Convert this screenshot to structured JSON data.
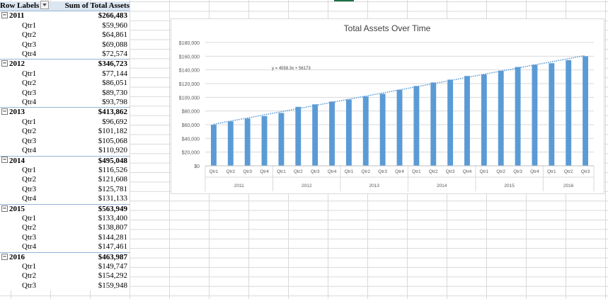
{
  "pivot": {
    "header_labels": "Row Labels",
    "header_sum": "Sum of Total Assets",
    "rows": [
      {
        "kind": "year",
        "label": "2011",
        "value": "$266,483"
      },
      {
        "kind": "q",
        "label": "Qtr1",
        "value": "$59,960"
      },
      {
        "kind": "q",
        "label": "Qtr2",
        "value": "$64,861"
      },
      {
        "kind": "q",
        "label": "Qtr3",
        "value": "$69,088"
      },
      {
        "kind": "q",
        "label": "Qtr4",
        "value": "$72,574"
      },
      {
        "kind": "year",
        "label": "2012",
        "value": "$346,723"
      },
      {
        "kind": "q",
        "label": "Qtr1",
        "value": "$77,144"
      },
      {
        "kind": "q",
        "label": "Qtr2",
        "value": "$86,051"
      },
      {
        "kind": "q",
        "label": "Qtr3",
        "value": "$89,730"
      },
      {
        "kind": "q",
        "label": "Qtr4",
        "value": "$93,798"
      },
      {
        "kind": "year",
        "label": "2013",
        "value": "$413,862"
      },
      {
        "kind": "q",
        "label": "Qtr1",
        "value": "$96,692"
      },
      {
        "kind": "q",
        "label": "Qtr2",
        "value": "$101,182"
      },
      {
        "kind": "q",
        "label": "Qtr3",
        "value": "$105,068"
      },
      {
        "kind": "q",
        "label": "Qtr4",
        "value": "$110,920"
      },
      {
        "kind": "year",
        "label": "2014",
        "value": "$495,048"
      },
      {
        "kind": "q",
        "label": "Qtr1",
        "value": "$116,526"
      },
      {
        "kind": "q",
        "label": "Qtr2",
        "value": "$121,608"
      },
      {
        "kind": "q",
        "label": "Qtr3",
        "value": "$125,781"
      },
      {
        "kind": "q",
        "label": "Qtr4",
        "value": "$131,133"
      },
      {
        "kind": "year",
        "label": "2015",
        "value": "$563,949"
      },
      {
        "kind": "q",
        "label": "Qtr1",
        "value": "$133,400"
      },
      {
        "kind": "q",
        "label": "Qtr2",
        "value": "$138,807"
      },
      {
        "kind": "q",
        "label": "Qtr3",
        "value": "$144,281"
      },
      {
        "kind": "q",
        "label": "Qtr4",
        "value": "$147,461"
      },
      {
        "kind": "year",
        "label": "2016",
        "value": "$463,987"
      },
      {
        "kind": "q",
        "label": "Qtr1",
        "value": "$149,747"
      },
      {
        "kind": "q",
        "label": "Qtr2",
        "value": "$154,292"
      },
      {
        "kind": "q",
        "label": "Qtr3",
        "value": "$159,948"
      }
    ]
  },
  "chart_data": {
    "type": "bar",
    "title": "Total Assets Over Time",
    "xlabel": "",
    "ylabel": "",
    "ylim": [
      0,
      180000
    ],
    "yticks": [
      "$0",
      "$20,000",
      "$40,000",
      "$60,000",
      "$80,000",
      "$100,000",
      "$120,000",
      "$140,000",
      "$160,000",
      "$180,000"
    ],
    "groups": [
      "2011",
      "2012",
      "2013",
      "2014",
      "2015",
      "2016"
    ],
    "categories": [
      "Qtr1",
      "Qtr2",
      "Qtr3",
      "Qtr4",
      "Qtr1",
      "Qtr2",
      "Qtr3",
      "Qtr4",
      "Qtr1",
      "Qtr2",
      "Qtr3",
      "Qtr4",
      "Qtr1",
      "Qtr2",
      "Qtr3",
      "Qtr4",
      "Qtr1",
      "Qtr2",
      "Qtr3",
      "Qtr4",
      "Qtr1",
      "Qtr2",
      "Qtr3"
    ],
    "values": [
      59960,
      64861,
      69088,
      72574,
      77144,
      86051,
      89730,
      93798,
      96692,
      101182,
      105068,
      110920,
      116526,
      121608,
      125781,
      131133,
      133400,
      138807,
      144281,
      147461,
      149747,
      154292,
      159948
    ],
    "trendline": {
      "type": "linear",
      "slope": 4558.3,
      "intercept": 56173,
      "label": "y = 4558.3x + 56173"
    },
    "grid": true,
    "legend": "none",
    "bar_color": "#5b9bd5",
    "trend_color": "#5b9bd5"
  }
}
